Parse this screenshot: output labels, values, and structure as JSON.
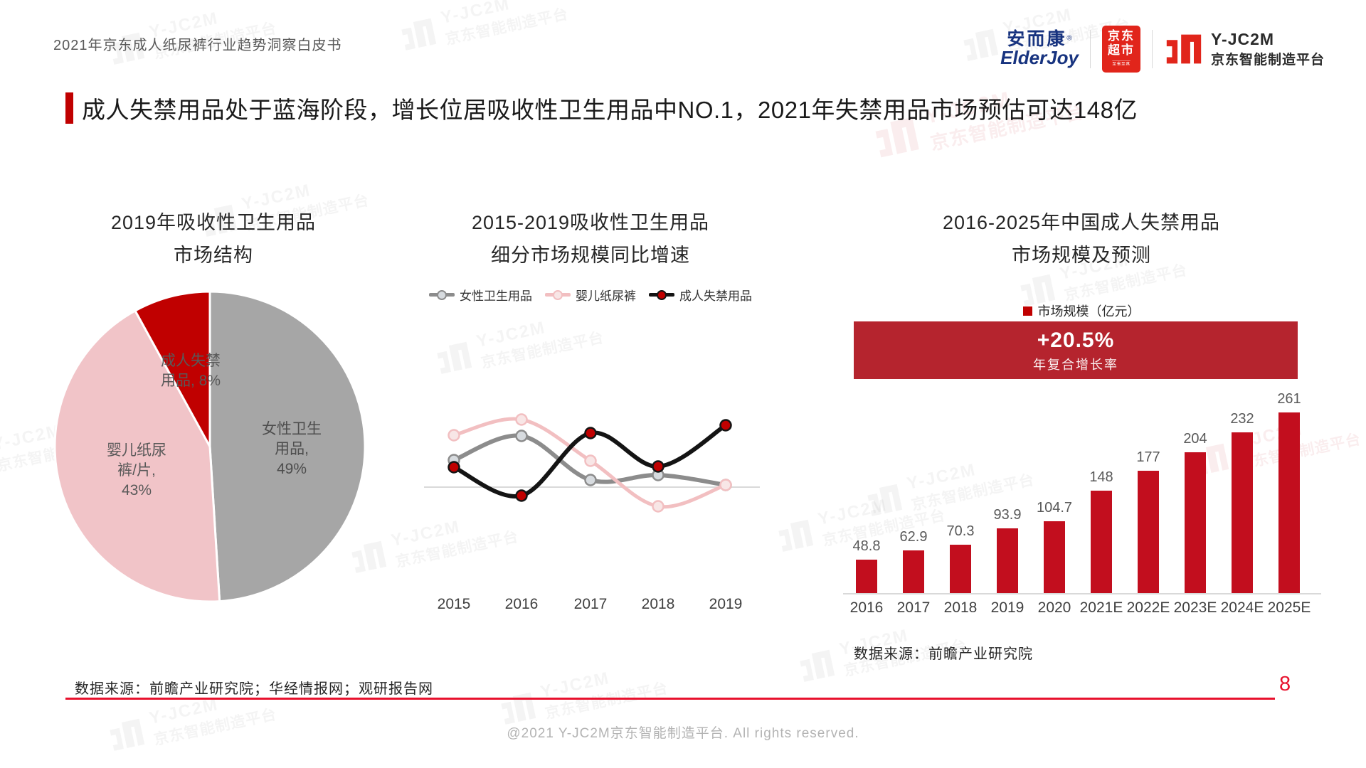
{
  "header": {
    "doc_title": "2021年京东成人纸尿裤行业趋势洞察白皮书",
    "logos": {
      "elderjoy_cn": "安而康",
      "elderjoy_reg": "®",
      "elderjoy_en": "ElderJoy",
      "jd_line1": "京东",
      "jd_line2": "超市",
      "jd_slogan": "至省至真",
      "jc2m_name": "Y-JC2M",
      "jc2m_cn": "京东智能制造平台"
    }
  },
  "headline": {
    "text": "成人失禁用品处于蓝海阶段，增长位居吸收性卫生用品中NO.1，2021年失禁用品市场预估可达148亿"
  },
  "watermark": {
    "name": "Y-JC2M",
    "cn": "京东智能制造平台"
  },
  "chart_data": [
    {
      "type": "pie",
      "title": "2019年吸收性卫生用品市场结构",
      "title_lines": [
        "2019年吸收性卫生用品",
        "市场结构"
      ],
      "start_angle": "12-oclock",
      "direction": "clockwise",
      "slices": [
        {
          "label": "女性卫生用品",
          "value": 49,
          "color": "#A6A6A6",
          "lines": [
            "女性卫生",
            "用品,",
            "49%"
          ]
        },
        {
          "label": "婴儿纸尿裤/片",
          "value": 43,
          "color": "#F1C4C8",
          "lines": [
            "婴儿纸尿",
            "裤/片,",
            "43%"
          ]
        },
        {
          "label": "成人失禁用品",
          "value": 8,
          "color": "#C00000",
          "lines": [
            "成人失禁",
            "用品, 8%"
          ]
        }
      ]
    },
    {
      "type": "line",
      "title": "2015-2019吸收性卫生用品细分市场规模同比增速",
      "title_lines": [
        "2015-2019吸收性卫生用品",
        "细分市场规模同比增速"
      ],
      "categories": [
        "2015",
        "2016",
        "2017",
        "2018",
        "2019"
      ],
      "series": [
        {
          "name": "女性卫生用品",
          "color": "#8C8C8C",
          "marker_fill": "#D7DBDF",
          "line_width": 6,
          "values": [
            7.6,
            14.4,
            2.0,
            3.4,
            0.6
          ]
        },
        {
          "name": "婴儿纸尿裤",
          "color": "#F2BFC1",
          "marker_fill": "#F8E6E6",
          "line_width": 5,
          "values": [
            14.6,
            19.0,
            7.4,
            -5.4,
            0.6
          ]
        },
        {
          "name": "成人失禁用品",
          "color": "#141414",
          "marker_fill": "#C00000",
          "line_width": 6,
          "values": [
            5.6,
            -2.4,
            15.2,
            5.8,
            17.4
          ]
        }
      ],
      "note": "图中无数值坐标轴，数值为按曲线位置估算的相对同比增速(%)",
      "ylim": [
        -8,
        24
      ],
      "grid": false,
      "legend_position": "top"
    },
    {
      "type": "bar",
      "title": "2016-2025年中国成人失禁用品市场规模及预测",
      "title_lines": [
        "2016-2025年中国成人失禁用品",
        "市场规模及预测"
      ],
      "legend": "市场规模（亿元）",
      "legend_color": "#C00000",
      "cagr_value": "+20.5%",
      "cagr_label": "年复合增长率",
      "banner_color": "#B5242E",
      "categories": [
        "2016",
        "2017",
        "2018",
        "2019",
        "2020",
        "2021E",
        "2022E",
        "2023E",
        "2024E",
        "2025E"
      ],
      "values": [
        48.8,
        62.9,
        70.3,
        93.9,
        104.7,
        148,
        177,
        204,
        232,
        261
      ],
      "bar_color": "#C20E1E",
      "ylim": [
        0,
        280
      ],
      "source": "数据来源：前瞻产业研究院"
    }
  ],
  "sources": {
    "bottom_left": "数据来源：前瞻产业研究院；华经情报网；观研报告网",
    "bar_chart": "数据来源：前瞻产业研究院"
  },
  "footer": {
    "copyright": "@2021 Y-JC2M京东智能制造平台. All rights reserved.",
    "page_number": "8"
  }
}
